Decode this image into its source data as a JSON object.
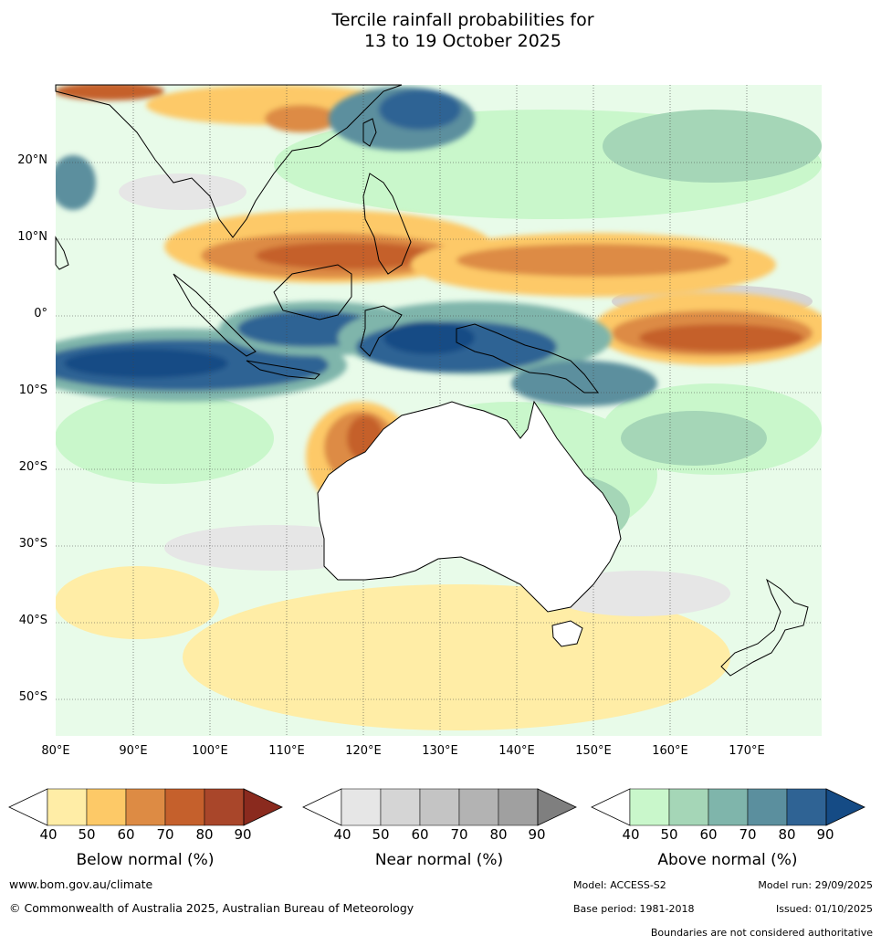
{
  "title": {
    "line1": "Tercile rainfall probabilities for",
    "line2": "13 to 19 October 2025"
  },
  "map": {
    "lat_labels": [
      "20°N",
      "10°N",
      "0°",
      "10°S",
      "20°S",
      "30°S",
      "40°S",
      "50°S"
    ],
    "lon_labels": [
      "80°E",
      "90°E",
      "100°E",
      "110°E",
      "120°E",
      "130°E",
      "140°E",
      "150°E",
      "160°E",
      "170°E"
    ]
  },
  "legends": [
    {
      "id": "below",
      "title": "Below normal (%)",
      "ticks": [
        "40",
        "50",
        "60",
        "70",
        "80",
        "90"
      ],
      "colors": [
        "#ffeda6",
        "#fdc967",
        "#dd8b44",
        "#c5602c",
        "#a9462a",
        "#8a2a1e"
      ]
    },
    {
      "id": "near",
      "title": "Near normal (%)",
      "ticks": [
        "40",
        "50",
        "60",
        "70",
        "80",
        "90"
      ],
      "colors": [
        "#e6e6e6",
        "#d5d5d5",
        "#c4c4c4",
        "#b3b3b3",
        "#a0a0a0",
        "#7f7f7f"
      ]
    },
    {
      "id": "above",
      "title": "Above normal (%)",
      "ticks": [
        "40",
        "50",
        "60",
        "70",
        "80",
        "90"
      ],
      "colors": [
        "#c9f7cb",
        "#a5d6b7",
        "#7fb5ab",
        "#5b8f9e",
        "#2f6394",
        "#154b85"
      ]
    }
  ],
  "footer": {
    "url": "www.bom.gov.au/climate",
    "copyright": "© Commonwealth of Australia 2025, Australian Bureau of Meteorology",
    "model": "Model: ACCESS-S2",
    "model_run": "Model run: 29/09/2025",
    "base_period": "Base period: 1981-2018",
    "issued": "Issued: 01/10/2025",
    "disclaimer": "Boundaries are not considered authoritative"
  }
}
